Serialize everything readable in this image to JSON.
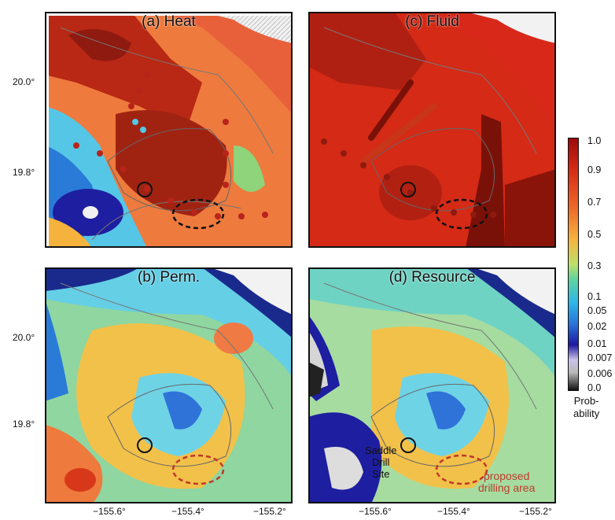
{
  "panels": {
    "a": {
      "title": "(a) Heat"
    },
    "b": {
      "title": "(b) Perm."
    },
    "c": {
      "title": "(c) Fluid"
    },
    "d": {
      "title": "(d) Resource"
    }
  },
  "axes": {
    "lat_ticks": [
      "20.0°",
      "19.8°"
    ],
    "lon_ticks": [
      "−155.6°",
      "−155.4°",
      "−155.2°"
    ]
  },
  "colorbar": {
    "ticks": [
      "1.0",
      "0.9",
      "0.7",
      "0.5",
      "0.3",
      "0.1",
      "0.05",
      "0.02",
      "0.01",
      "0.007",
      "0.006",
      "0.0"
    ],
    "label_line1": "Prob-",
    "label_line2": "ability",
    "colors": [
      "#9b0a0a",
      "#d42a16",
      "#ee6a2a",
      "#f5b33e",
      "#bde06a",
      "#5fd3a0",
      "#2fb8e6",
      "#2a70d8",
      "#1d1aa0",
      "#c9c3e8",
      "#b8b8b8",
      "#101010"
    ]
  },
  "annotations": {
    "saddle_line1": "Saddle",
    "saddle_line2": "Drill",
    "saddle_line3": "Site",
    "proposed_line1": "proposed",
    "proposed_line2": "drilling area",
    "proposed_color": "#c0392b"
  }
}
